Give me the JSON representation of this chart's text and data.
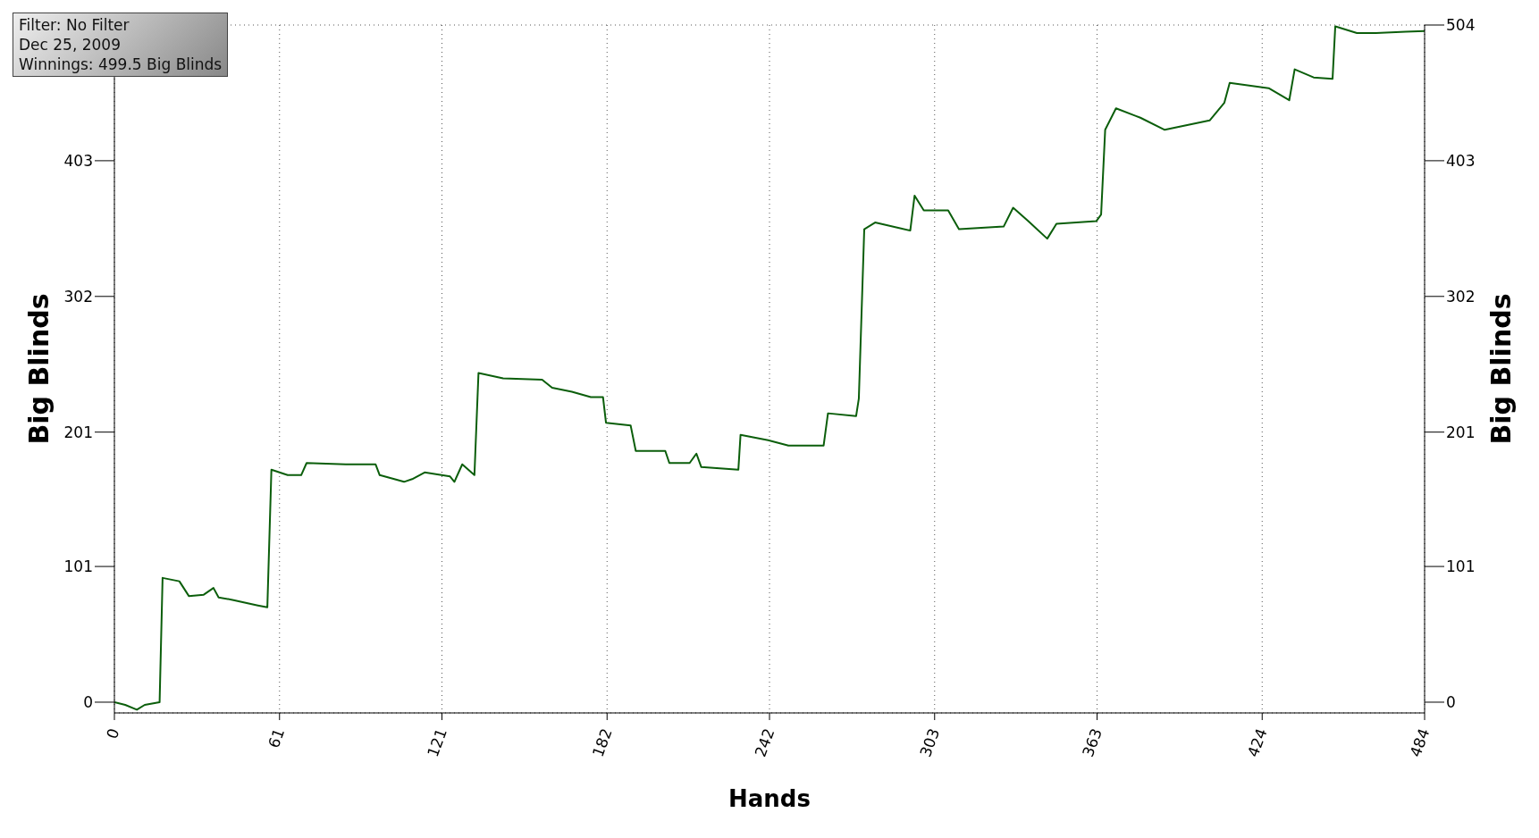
{
  "chart_data": {
    "type": "line",
    "xlabel": "Hands",
    "ylabel": "Big Blinds",
    "y2label": "Big Blinds",
    "annotations": [
      "Filter: No Filter",
      "Dec 25, 2009",
      "Winnings: 499.5 Big Blinds"
    ],
    "x": [
      0,
      4,
      8.3,
      11.2,
      16.7,
      17.8,
      24,
      27.5,
      33,
      36.6,
      38.5,
      44,
      53,
      56.5,
      58,
      64,
      69,
      71,
      85.5,
      96.5,
      98,
      107,
      110,
      114.6,
      124,
      125.6,
      128.5,
      133,
      134.5,
      143.6,
      158,
      161.7,
      169,
      176,
      180.5,
      181.6,
      190.7,
      192.6,
      203.5,
      205,
      212.5,
      215,
      216.8,
      230.5,
      231.3,
      241.5,
      249,
      262,
      263.6,
      274,
      275,
      277,
      281,
      294,
      295.6,
      299,
      308,
      312,
      328.5,
      332,
      337.6,
      344.6,
      348,
      362.7,
      364.5,
      366,
      370,
      379,
      388,
      404.6,
      410,
      412,
      426.4,
      434,
      436,
      443,
      450,
      451,
      459,
      466,
      477,
      484
    ],
    "series": [
      {
        "color": "#0b5e0b",
        "values": [
          0,
          -2,
          -5.6,
          -2,
          0,
          92.5,
          90,
          79,
          80,
          85,
          78,
          76,
          72,
          70.6,
          173,
          169,
          169,
          178,
          177,
          177,
          169,
          164,
          166,
          171,
          168,
          164,
          177,
          169,
          245,
          241,
          240,
          234,
          231,
          227,
          227,
          208,
          206,
          187,
          187,
          178,
          178,
          185,
          175,
          173,
          199,
          195,
          191,
          191,
          215,
          213,
          226,
          352,
          357,
          351,
          377,
          366,
          366,
          352,
          354,
          368,
          358,
          345,
          356,
          358,
          363,
          426,
          442,
          435,
          426,
          433,
          446,
          461,
          457,
          448,
          471,
          465,
          464,
          503,
          498,
          498,
          499,
          499.5
        ]
      }
    ],
    "xlim": [
      0,
      484
    ],
    "xticks": [
      0,
      61,
      121,
      182,
      242,
      303,
      363,
      424,
      484
    ],
    "ylim": [
      -8,
      504
    ],
    "yticks": [
      0,
      101,
      201,
      302,
      403
    ],
    "y2lim": [
      -8,
      504
    ],
    "y2ticks": [
      0,
      101,
      201,
      302,
      403,
      504
    ],
    "grid": true,
    "legend": false,
    "marker": "none",
    "line_style": "solid"
  }
}
